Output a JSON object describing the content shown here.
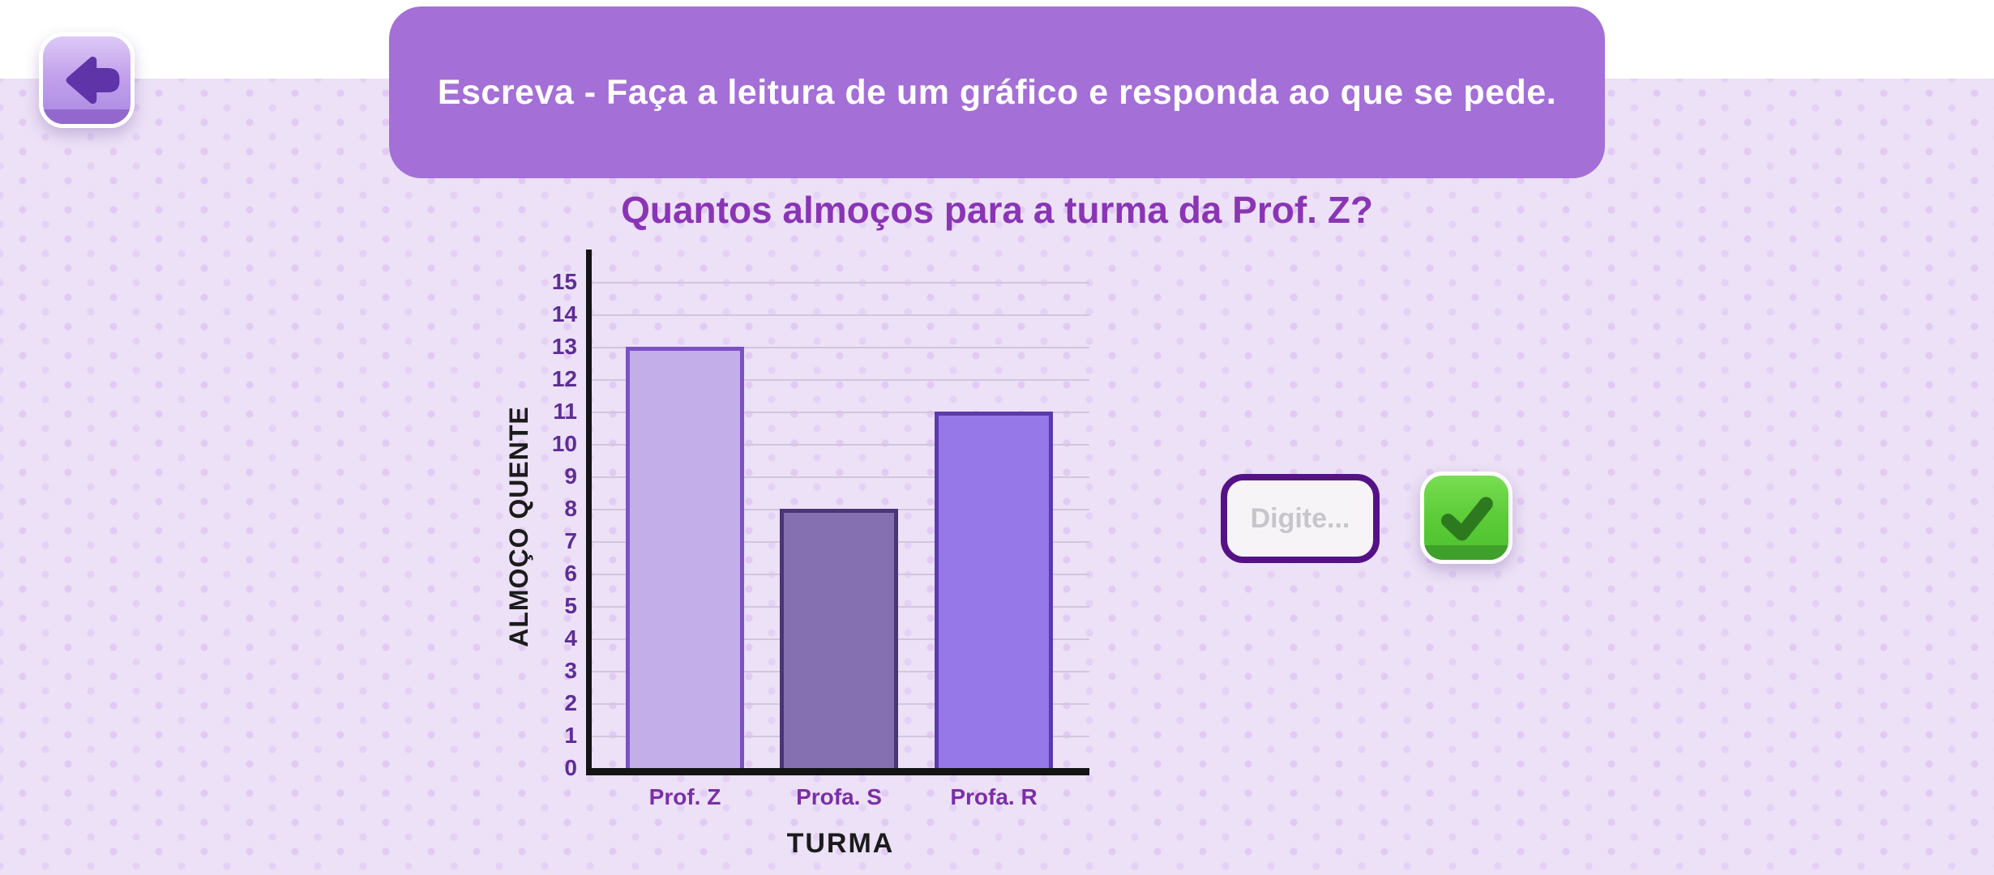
{
  "header": {
    "instruction": "Escreva - Faça a leitura de um gráfico e responda ao que se pede."
  },
  "question": {
    "title": "Quantos almoços para a turma da Prof. Z?"
  },
  "chart_data": {
    "type": "bar",
    "title": "Quantos almoços para a turma da Prof. Z?",
    "categories": [
      "Prof. Z",
      "Profa. S",
      "Profa. R"
    ],
    "values": [
      13,
      8,
      11
    ],
    "xlabel": "TURMA",
    "ylabel": "ALMOÇO QUENTE",
    "ylim": [
      0,
      15
    ],
    "ytick_step": 1,
    "grid": true,
    "legend": false,
    "bar_colors": [
      {
        "fill": "#c3aeea",
        "border": "#7a52c2"
      },
      {
        "fill": "#8571b1",
        "border": "#4b3577"
      },
      {
        "fill": "#9678e8",
        "border": "#5c3aa8"
      }
    ]
  },
  "answer": {
    "placeholder": "Digite...",
    "value": ""
  },
  "icons": {
    "back": "arrow-left",
    "confirm": "checkmark"
  },
  "colors": {
    "header_bg": "#a46fd6",
    "title": "#8a35b5",
    "tick": "#5e2d96",
    "category": "#7b2fa6",
    "grid": "#d2c6dc",
    "axis": "#141414",
    "input_border": "#551287",
    "confirm_green": "#4cc02e",
    "back_purple": "#a888e0",
    "background": "#ece1f7"
  }
}
